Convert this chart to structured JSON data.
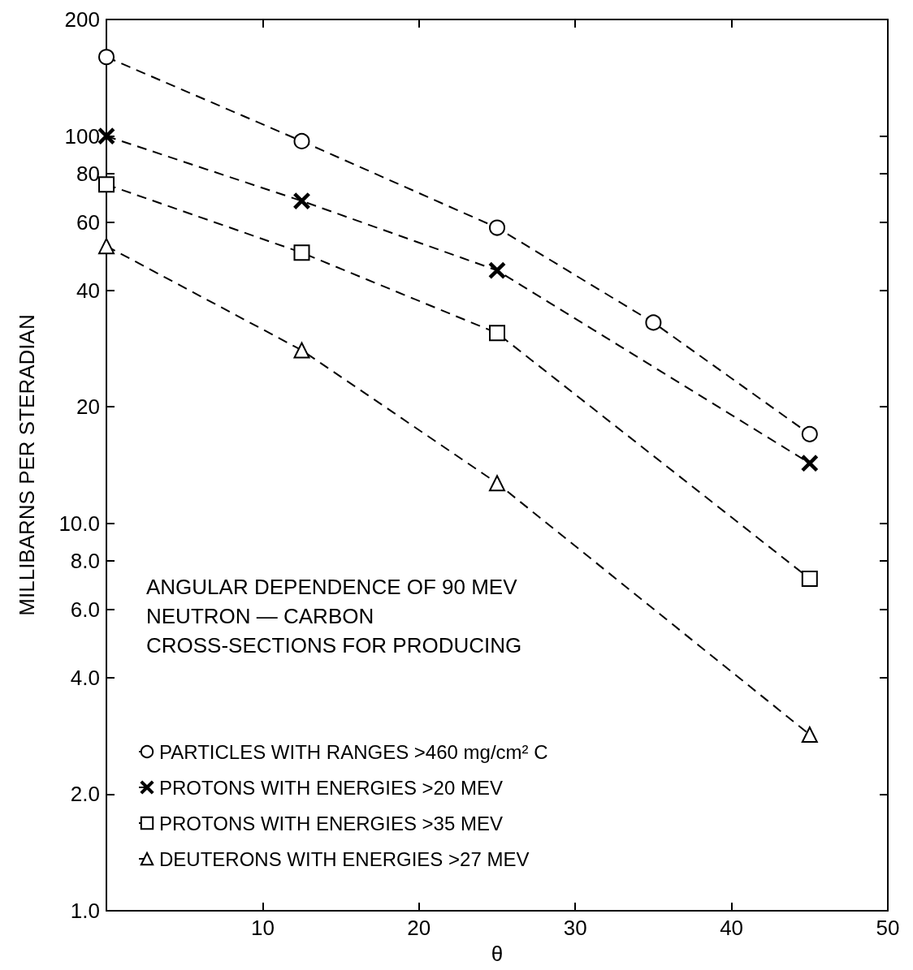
{
  "chart_data": {
    "type": "line",
    "title": "ANGULAR DEPENDENCE OF 90 MEV NEUTRON — CARBON CROSS-SECTIONS FOR PRODUCING",
    "xlabel": "θ",
    "ylabel": "MILLIBARNS PER STERADIAN",
    "x": [
      0,
      12.5,
      25,
      35,
      45
    ],
    "series": [
      {
        "name": "PARTICLES WITH RANGES >460 mg/cm² C",
        "color": "#000000",
        "marker": "circle",
        "values": [
          160,
          97,
          58,
          33,
          17
        ]
      },
      {
        "name": "PROTONS WITH ENERGIES >20 MEV",
        "color": "#000000",
        "marker": "cross",
        "values": [
          100,
          68,
          45,
          null,
          14.3
        ]
      },
      {
        "name": "PROTONS WITH ENERGIES >35 MEV",
        "color": "#000000",
        "marker": "square",
        "values": [
          75,
          50,
          31,
          null,
          7.2
        ]
      },
      {
        "name": "DEUTERONS WITH ENERGIES >27 MEV",
        "color": "#000000",
        "marker": "triangle",
        "values": [
          52,
          28,
          12.7,
          null,
          2.85
        ]
      }
    ],
    "xlim": [
      0,
      50
    ],
    "xticks": [
      {
        "value": 0,
        "label": null
      },
      10,
      20,
      30,
      40,
      50
    ],
    "ylim": [
      1,
      200
    ],
    "yticks": [
      {
        "value": 1,
        "label": "1.0"
      },
      {
        "value": 2,
        "label": "2.0"
      },
      {
        "value": 4,
        "label": "4.0"
      },
      {
        "value": 6,
        "label": "6.0"
      },
      {
        "value": 8,
        "label": "8.0"
      },
      {
        "value": 10,
        "label": "10.0"
      },
      20,
      40,
      60,
      80,
      100,
      200
    ],
    "log": "y",
    "grid": false,
    "legend": "bottom left",
    "line_style": "dashed"
  }
}
